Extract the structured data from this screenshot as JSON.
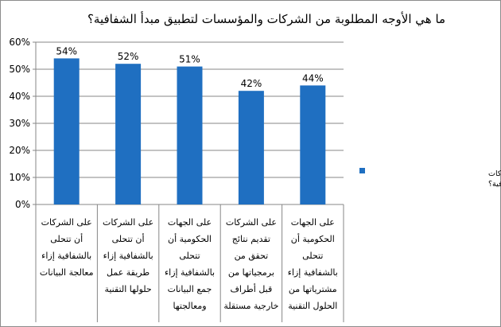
{
  "chart_data": {
    "type": "bar",
    "title": "ما هي الأوجه المطلوبة من الشركات والمؤسسات لتطبيق مبدأ الشفافية؟",
    "categories": [
      [
        "على الشركات",
        "أن تتحلى",
        "بالشفافية إزاء",
        "معالجة البيانات"
      ],
      [
        "على الشركات",
        "أن تتحلى",
        "بالشفافية إزاء",
        "طريقة عمل",
        "حلولها التقنية"
      ],
      [
        "على الجهات",
        "الحكومية أن",
        "تتحلى",
        "بالشفافية إزاء",
        "جمع البيانات",
        "ومعالجتها"
      ],
      [
        "على الشركات",
        "تقديم نتائج",
        "تحقق من",
        "برمجياتها من",
        "قبل أطراف",
        "خارجية مستقلة"
      ],
      [
        "على الجهات",
        "الحكومية أن",
        "تتحلى",
        "بالشفافية إزاء",
        "مشترياتها من",
        "الحلول التقنية"
      ]
    ],
    "series": [
      {
        "name": "ما هي الأوجه المطلوبة من الشركات والمؤسسات لتطبيق مبدأ الشفافية؟",
        "legend_lines": [
          "ما هي الأوجه المطلوبة من الشركات",
          "والمؤسسات لتطبيق مبدأ الشفافية؟"
        ],
        "values": [
          54,
          52,
          51,
          42,
          44
        ],
        "value_labels": [
          "54%",
          "52%",
          "51%",
          "42%",
          "44%"
        ],
        "color": "#1f6fc1"
      }
    ],
    "ylim": [
      0,
      60
    ],
    "yticks": [
      "0%",
      "10%",
      "20%",
      "30%",
      "40%",
      "50%",
      "60%"
    ],
    "grid": true,
    "legend": "right"
  }
}
